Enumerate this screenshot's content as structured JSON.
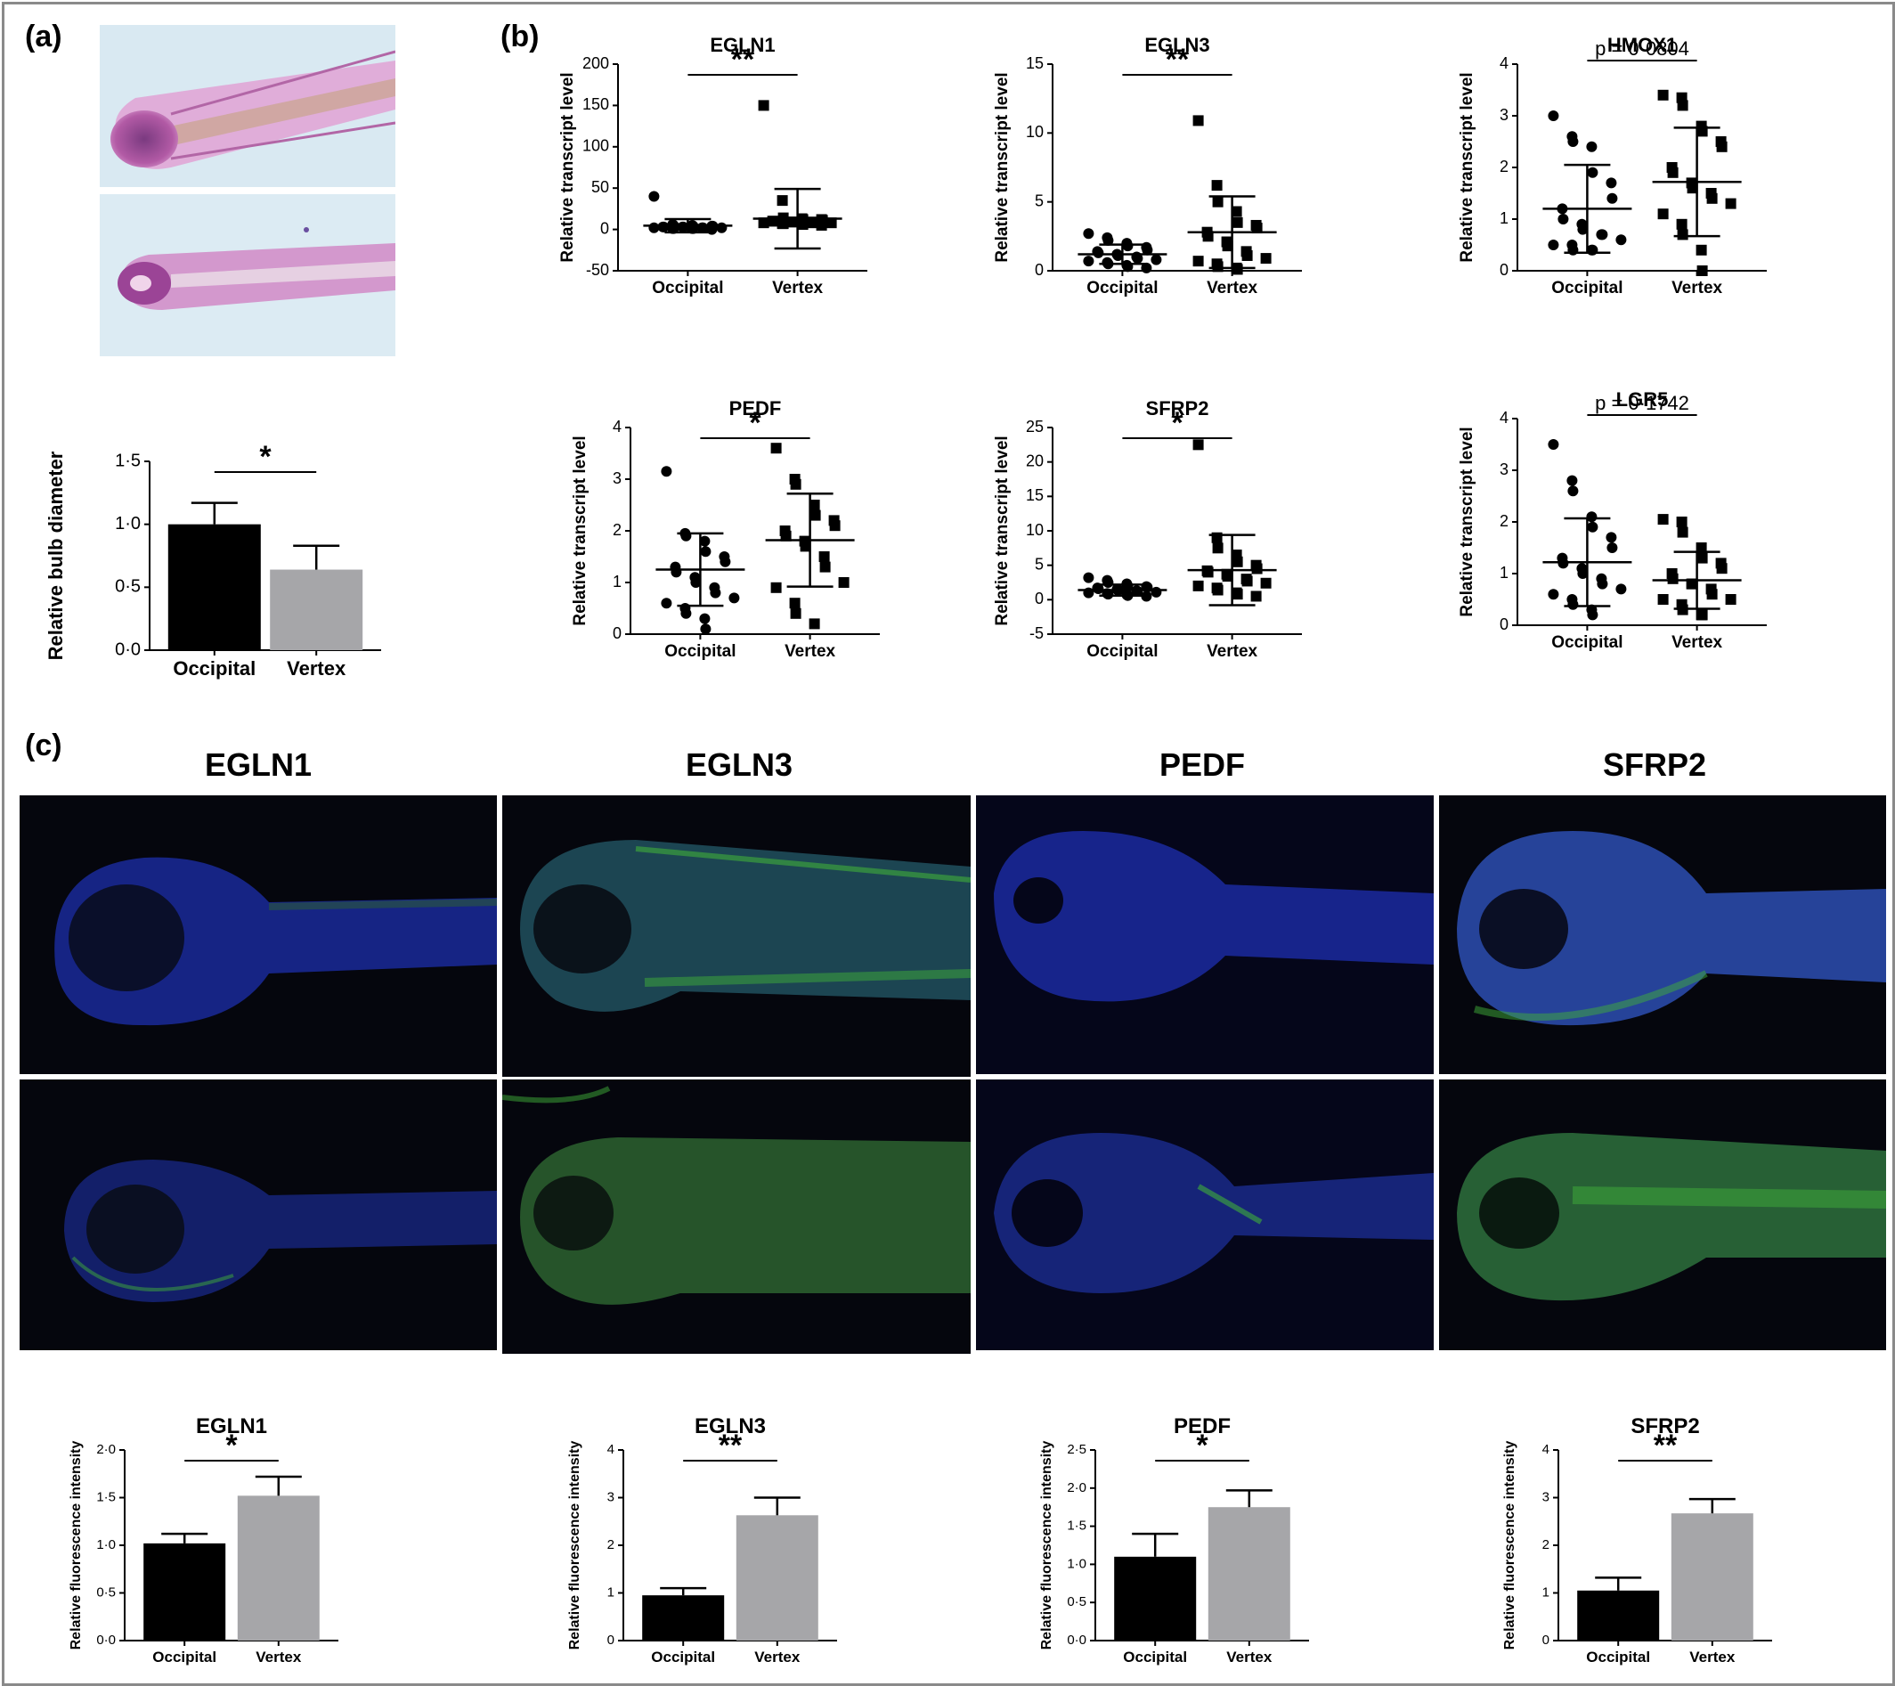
{
  "panels": {
    "a": "(a)",
    "b": "(b)",
    "c": "(c)"
  },
  "colors": {
    "occipital": "#000000",
    "vertex": "#a6a6a9",
    "he_stain": "#c070b8",
    "nuclei": "#2a3acc",
    "green_signal": "#3fae3a"
  },
  "image_titles": [
    "EGLN1",
    "EGLN3",
    "PEDF",
    "SFRP2"
  ],
  "chart_data": [
    {
      "id": "a_bulb",
      "type": "bar",
      "panel": "(a)",
      "title": "",
      "ylabel": "Relative bulb diameter",
      "categories": [
        "Occipital",
        "Vertex"
      ],
      "values": [
        1.0,
        0.64
      ],
      "errors": [
        0.17,
        0.19
      ],
      "ylim": [
        0,
        1.5
      ],
      "yticks": [
        0,
        0.5,
        1.0,
        1.5
      ],
      "ytick_labels": [
        "0·0",
        "0·5",
        "1·0",
        "1·5"
      ],
      "annotation": "*"
    },
    {
      "id": "b_egln1",
      "type": "scatter",
      "panel": "(b)",
      "title": "EGLN1",
      "ylabel": "Relative transcript level",
      "categories": [
        "Occipital",
        "Vertex"
      ],
      "points": [
        [
          40,
          6,
          5,
          5,
          4,
          4,
          4,
          3,
          3,
          3,
          3,
          2,
          2,
          2,
          2,
          1,
          1,
          1,
          1,
          0
        ],
        [
          150,
          35,
          14,
          13,
          12,
          12,
          11,
          10,
          10,
          9,
          9,
          9,
          8,
          8,
          8,
          7,
          7,
          6,
          6,
          5
        ]
      ],
      "means": [
        4.5,
        13
      ],
      "sd": [
        8,
        36
      ],
      "ylim": [
        -50,
        200
      ],
      "yticks": [
        -50,
        0,
        50,
        100,
        150,
        200
      ],
      "ytick_labels": [
        "-50",
        "0",
        "50",
        "100",
        "150",
        "200"
      ],
      "annotation": "**"
    },
    {
      "id": "b_egln3",
      "type": "scatter",
      "panel": "(b)",
      "title": "EGLN3",
      "ylabel": "Relative transcript level",
      "categories": [
        "Occipital",
        "Vertex"
      ],
      "points": [
        [
          2.7,
          2.4,
          2.2,
          2.0,
          1.8,
          1.7,
          1.5,
          1.4,
          1.3,
          1.2,
          1.1,
          1.0,
          0.9,
          0.8,
          0.7,
          0.6,
          0.5,
          0.4,
          0.3,
          0.2
        ],
        [
          10.9,
          6.2,
          5.0,
          4.3,
          3.5,
          3.3,
          3.1,
          2.8,
          2.5,
          2.1,
          1.8,
          1.4,
          1.1,
          0.9,
          0.7,
          0.5,
          0.3,
          0.2,
          0.1
        ]
      ],
      "means": [
        1.2,
        2.8
      ],
      "sd": [
        0.7,
        2.6
      ],
      "ylim": [
        0,
        15
      ],
      "yticks": [
        0,
        5,
        10,
        15
      ],
      "ytick_labels": [
        "0",
        "5",
        "10",
        "15"
      ],
      "annotation": "**"
    },
    {
      "id": "b_hmox1",
      "type": "scatter",
      "panel": "(b)",
      "title": "HMOX1",
      "ylabel": "Relative transcript level",
      "categories": [
        "Occipital",
        "Vertex"
      ],
      "points": [
        [
          3.0,
          2.6,
          2.5,
          2.4,
          1.9,
          1.7,
          1.4,
          1.2,
          1.0,
          0.9,
          0.8,
          0.7,
          0.7,
          0.6,
          0.5,
          0.5,
          0.4,
          0.4,
          0.4
        ],
        [
          3.4,
          3.35,
          3.2,
          2.8,
          2.7,
          2.5,
          2.4,
          2.0,
          1.9,
          1.7,
          1.6,
          1.5,
          1.4,
          1.3,
          1.1,
          0.9,
          0.7,
          0.4,
          0.0
        ]
      ],
      "means": [
        1.2,
        1.72
      ],
      "sd": [
        0.85,
        1.05
      ],
      "ylim": [
        0,
        4
      ],
      "yticks": [
        0,
        1,
        2,
        3,
        4
      ],
      "ytick_labels": [
        "0",
        "1",
        "2",
        "3",
        "4"
      ],
      "annotation": "p = 0·0804"
    },
    {
      "id": "b_pedf",
      "type": "scatter",
      "panel": "(b)",
      "title": "PEDF",
      "ylabel": "Relative transcript level",
      "categories": [
        "Occipital",
        "Vertex"
      ],
      "points": [
        [
          3.15,
          1.95,
          1.9,
          1.8,
          1.6,
          1.5,
          1.4,
          1.3,
          1.2,
          1.1,
          1.0,
          0.9,
          0.8,
          0.7,
          0.6,
          0.5,
          0.4,
          0.3,
          0.1
        ],
        [
          3.6,
          3.0,
          2.9,
          2.5,
          2.3,
          2.2,
          2.1,
          2.0,
          1.9,
          1.8,
          1.7,
          1.5,
          1.3,
          1.0,
          0.9,
          0.6,
          0.4,
          0.2
        ]
      ],
      "means": [
        1.25,
        1.82
      ],
      "sd": [
        0.7,
        0.9
      ],
      "ylim": [
        0,
        4
      ],
      "yticks": [
        0,
        1,
        2,
        3,
        4
      ],
      "ytick_labels": [
        "0",
        "1",
        "2",
        "3",
        "4"
      ],
      "annotation": "*"
    },
    {
      "id": "b_sfrp2",
      "type": "scatter",
      "panel": "(b)",
      "title": "SFRP2",
      "ylabel": "Relative transcript level",
      "categories": [
        "Occipital",
        "Vertex"
      ],
      "points": [
        [
          3.2,
          2.8,
          2.5,
          2.3,
          2.0,
          1.9,
          1.8,
          1.7,
          1.6,
          1.5,
          1.4,
          1.3,
          1.2,
          1.1,
          1.0,
          0.9,
          0.8,
          0.7,
          0.6,
          0.5
        ],
        [
          22.5,
          9.0,
          7.5,
          6.5,
          5.5,
          5.0,
          4.5,
          4.2,
          4.0,
          3.7,
          3.4,
          3.0,
          2.7,
          2.4,
          2.0,
          1.7,
          1.4,
          1.0,
          0.8,
          0.5
        ]
      ],
      "means": [
        1.4,
        4.3
      ],
      "sd": [
        0.8,
        5.1
      ],
      "ylim": [
        -5,
        25
      ],
      "yticks": [
        -5,
        0,
        5,
        10,
        15,
        20,
        25
      ],
      "ytick_labels": [
        "-5",
        "0",
        "5",
        "10",
        "15",
        "20",
        "25"
      ],
      "annotation": "*"
    },
    {
      "id": "b_lgr5",
      "type": "scatter",
      "panel": "(b)",
      "title": "LGR5",
      "ylabel": "Relative transcript level",
      "categories": [
        "Occipital",
        "Vertex"
      ],
      "points": [
        [
          3.5,
          2.8,
          2.6,
          2.1,
          1.9,
          1.7,
          1.5,
          1.3,
          1.2,
          1.1,
          1.0,
          0.9,
          0.8,
          0.7,
          0.6,
          0.5,
          0.4,
          0.3,
          0.2
        ],
        [
          2.05,
          2.0,
          1.8,
          1.5,
          1.3,
          1.2,
          1.1,
          1.0,
          0.9,
          0.8,
          0.8,
          0.7,
          0.6,
          0.5,
          0.5,
          0.4,
          0.3,
          0.2,
          0.2
        ]
      ],
      "means": [
        1.22,
        0.87
      ],
      "sd": [
        0.85,
        0.55
      ],
      "ylim": [
        0,
        4
      ],
      "yticks": [
        0,
        1,
        2,
        3,
        4
      ],
      "ytick_labels": [
        "0",
        "1",
        "2",
        "3",
        "4"
      ],
      "annotation": "p = 0·1742"
    },
    {
      "id": "c_egln1",
      "type": "bar",
      "panel": "(c)",
      "title": "EGLN1",
      "ylabel": "Relative fluorescence intensity",
      "categories": [
        "Occipital",
        "Vertex"
      ],
      "values": [
        1.02,
        1.52
      ],
      "errors": [
        0.1,
        0.2
      ],
      "ylim": [
        0,
        2.0
      ],
      "yticks": [
        0,
        0.5,
        1.0,
        1.5,
        2.0
      ],
      "ytick_labels": [
        "0·0",
        "0·5",
        "1·0",
        "1·5",
        "2·0"
      ],
      "annotation": "*"
    },
    {
      "id": "c_egln3",
      "type": "bar",
      "panel": "(c)",
      "title": "EGLN3",
      "ylabel": "Relative fluorescence intensity",
      "categories": [
        "Occipital",
        "Vertex"
      ],
      "values": [
        0.95,
        2.63
      ],
      "errors": [
        0.15,
        0.37
      ],
      "ylim": [
        0,
        4
      ],
      "yticks": [
        0,
        1,
        2,
        3,
        4
      ],
      "ytick_labels": [
        "0",
        "1",
        "2",
        "3",
        "4"
      ],
      "annotation": "**"
    },
    {
      "id": "c_pedf",
      "type": "bar",
      "panel": "(c)",
      "title": "PEDF",
      "ylabel": "Relative fluorescence intensity",
      "categories": [
        "Occipital",
        "Vertex"
      ],
      "values": [
        1.1,
        1.75
      ],
      "errors": [
        0.3,
        0.22
      ],
      "ylim": [
        0,
        2.5
      ],
      "yticks": [
        0,
        0.5,
        1.0,
        1.5,
        2.0,
        2.5
      ],
      "ytick_labels": [
        "0·0",
        "0·5",
        "1·0",
        "1·5",
        "2·0",
        "2·5"
      ],
      "annotation": "*"
    },
    {
      "id": "c_sfrp2",
      "type": "bar",
      "panel": "(c)",
      "title": "SFRP2",
      "ylabel": "Relative fluorescence intensity",
      "categories": [
        "Occipital",
        "Vertex"
      ],
      "values": [
        1.05,
        2.67
      ],
      "errors": [
        0.27,
        0.3
      ],
      "ylim": [
        0,
        4
      ],
      "yticks": [
        0,
        1,
        2,
        3,
        4
      ],
      "ytick_labels": [
        "0",
        "1",
        "2",
        "3",
        "4"
      ],
      "annotation": "**"
    }
  ]
}
